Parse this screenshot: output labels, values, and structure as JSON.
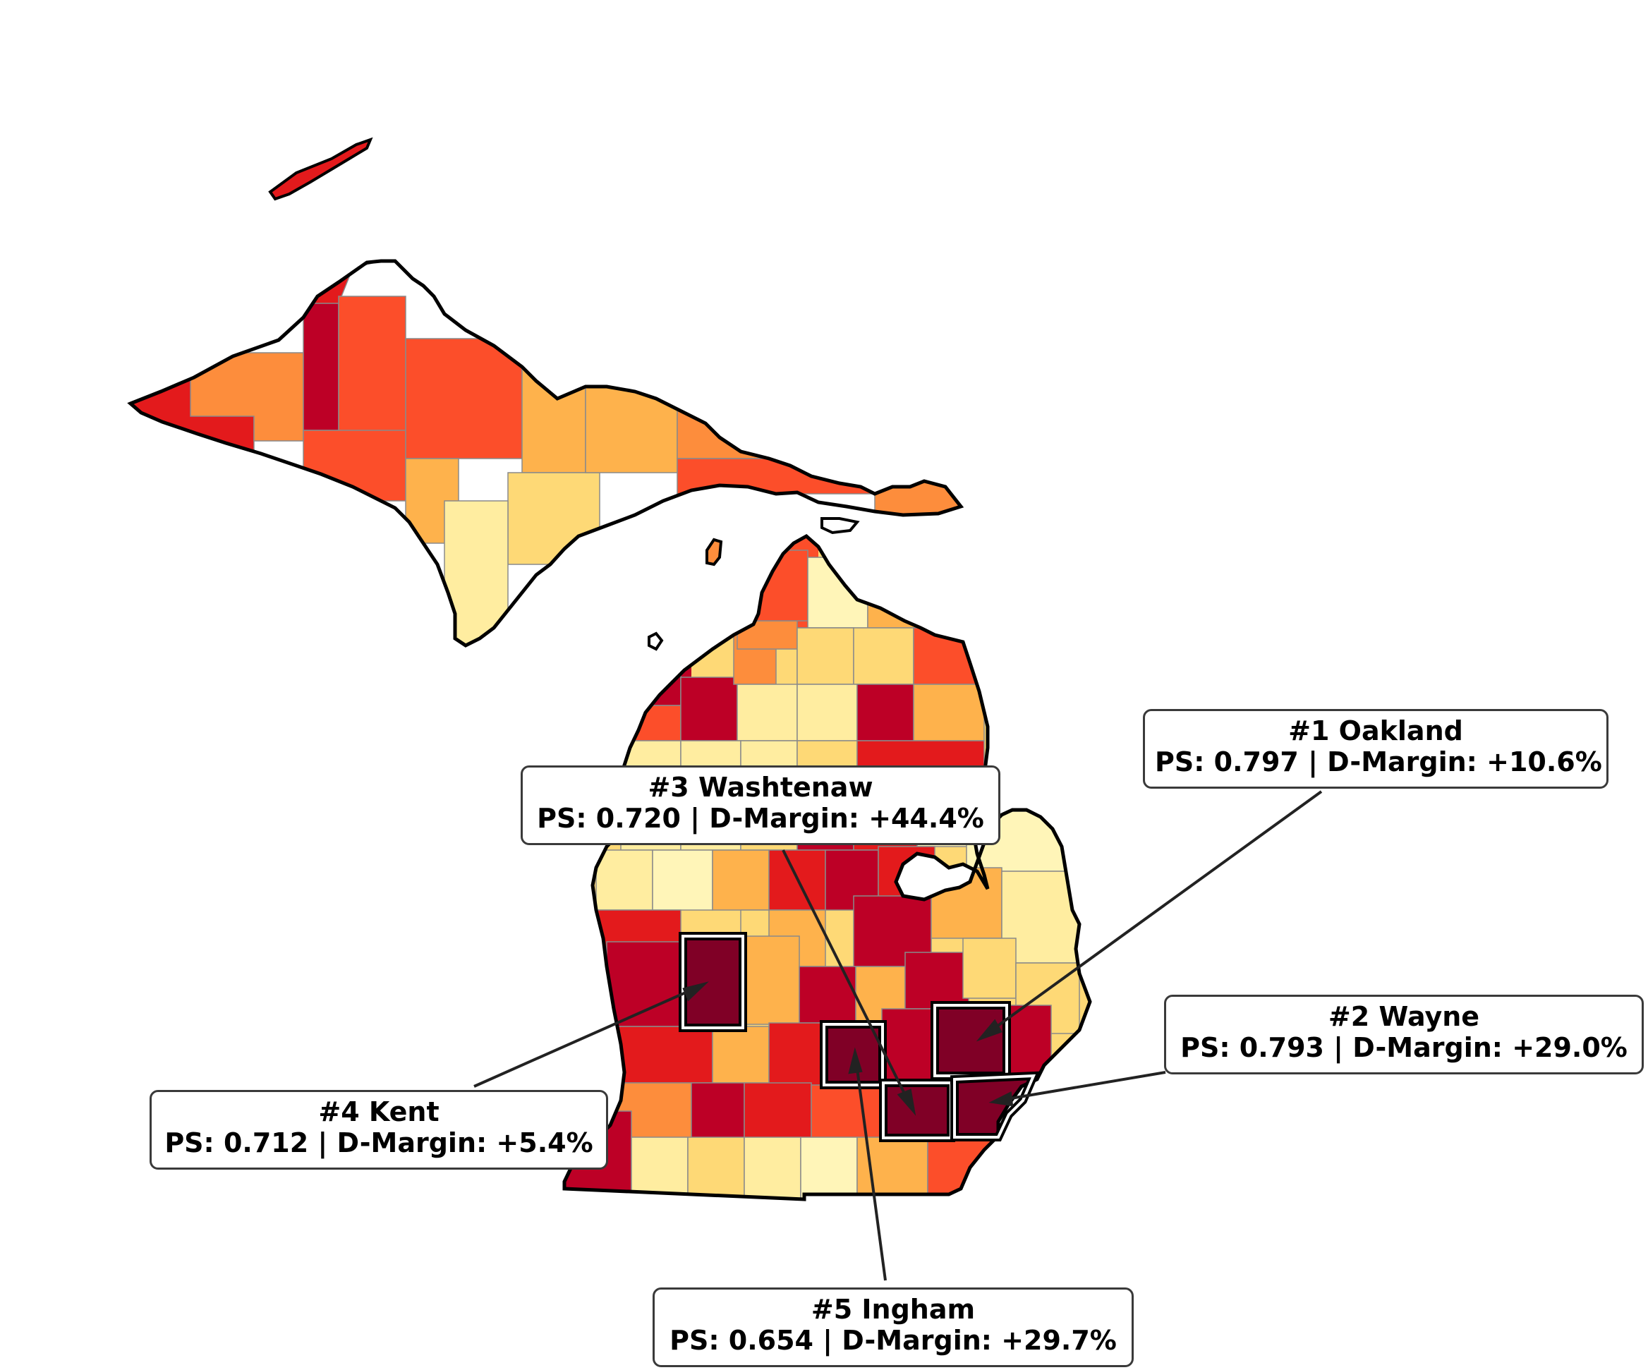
{
  "colors": {
    "scale": [
      "#fff5b8",
      "#ffeda0",
      "#fed976",
      "#feb24c",
      "#fd8d3c",
      "#fc4e2a",
      "#e31a1c",
      "#bd0026",
      "#800026"
    ],
    "border": "#000000",
    "county_border": "#8a8a8a",
    "highlight_border": "#ffffff"
  },
  "map": {
    "upper": [
      {
        "name": "isle-royale",
        "level": 6
      },
      {
        "name": "gogebic",
        "level": 6
      },
      {
        "name": "ontonagon",
        "level": 4
      },
      {
        "name": "houghton",
        "level": 7
      },
      {
        "name": "keweenaw",
        "level": 6
      },
      {
        "name": "baraga",
        "level": 5
      },
      {
        "name": "marquette",
        "level": 5
      },
      {
        "name": "iron",
        "level": 5
      },
      {
        "name": "dickinson",
        "level": 3
      },
      {
        "name": "alger",
        "level": 3
      },
      {
        "name": "schoolcraft",
        "level": 3
      },
      {
        "name": "menominee",
        "level": 1
      },
      {
        "name": "delta",
        "level": 2
      },
      {
        "name": "luce",
        "level": 4
      },
      {
        "name": "chippewa-w",
        "level": 4
      },
      {
        "name": "mackinac",
        "level": 5
      },
      {
        "name": "chippewa-e",
        "level": 4
      },
      {
        "name": "beaver-island",
        "level": 4
      }
    ],
    "lower": [
      {
        "name": "leelanau",
        "level": 7
      },
      {
        "name": "benzie",
        "level": 5
      },
      {
        "name": "grand-traverse",
        "level": 7
      },
      {
        "name": "antrim",
        "level": 4
      },
      {
        "name": "charlevoix",
        "level": 4
      },
      {
        "name": "emmet",
        "level": 5
      },
      {
        "name": "cheboygan",
        "level": 0
      },
      {
        "name": "presque-isle",
        "level": 3
      },
      {
        "name": "kalkaska",
        "level": 2
      },
      {
        "name": "otsego",
        "level": 2
      },
      {
        "name": "montmorency",
        "level": 2
      },
      {
        "name": "alpena",
        "level": 5
      },
      {
        "name": "wexford",
        "level": 1
      },
      {
        "name": "missaukee",
        "level": 1
      },
      {
        "name": "roscommon",
        "level": 7
      },
      {
        "name": "alcona",
        "level": 3
      },
      {
        "name": "mason",
        "level": 1
      },
      {
        "name": "lake",
        "level": 1
      },
      {
        "name": "osceola",
        "level": 1
      },
      {
        "name": "clare",
        "level": 2
      },
      {
        "name": "iosco",
        "level": 6
      },
      {
        "name": "oceana",
        "level": 1
      },
      {
        "name": "newaygo",
        "level": 0
      },
      {
        "name": "mecosta",
        "level": 3
      },
      {
        "name": "isabella",
        "level": 6
      },
      {
        "name": "midland",
        "level": 7
      },
      {
        "name": "bay",
        "level": 6
      },
      {
        "name": "huron",
        "level": 0
      },
      {
        "name": "muskegon",
        "level": 6
      },
      {
        "name": "montcalm",
        "level": 2
      },
      {
        "name": "gratiot",
        "level": 3
      },
      {
        "name": "saginaw",
        "level": 7
      },
      {
        "name": "tuscola",
        "level": 3
      },
      {
        "name": "sanilac",
        "level": 1
      },
      {
        "name": "ottawa",
        "level": 7
      },
      {
        "name": "kent",
        "level": 8
      },
      {
        "name": "ionia",
        "level": 3
      },
      {
        "name": "clinton",
        "level": 7
      },
      {
        "name": "shiawassee",
        "level": 3
      },
      {
        "name": "genesee",
        "level": 7
      },
      {
        "name": "lapeer",
        "level": 2
      },
      {
        "name": "st-clair",
        "level": 2
      },
      {
        "name": "allegan",
        "level": 6
      },
      {
        "name": "barry",
        "level": 3
      },
      {
        "name": "eaton",
        "level": 6
      },
      {
        "name": "ingham",
        "level": 8
      },
      {
        "name": "livingston",
        "level": 7
      },
      {
        "name": "oakland",
        "level": 8
      },
      {
        "name": "macomb",
        "level": 7
      },
      {
        "name": "van-buren",
        "level": 4
      },
      {
        "name": "kalamazoo",
        "level": 7
      },
      {
        "name": "calhoun",
        "level": 6
      },
      {
        "name": "jackson",
        "level": 5
      },
      {
        "name": "washtenaw",
        "level": 8
      },
      {
        "name": "wayne",
        "level": 8
      },
      {
        "name": "berrien",
        "level": 7
      },
      {
        "name": "cass",
        "level": 1
      },
      {
        "name": "st-joseph",
        "level": 2
      },
      {
        "name": "branch",
        "level": 1
      },
      {
        "name": "hillsdale",
        "level": 0
      },
      {
        "name": "lenawee",
        "level": 3
      },
      {
        "name": "monroe",
        "level": 5
      }
    ]
  },
  "callouts": [
    {
      "rank": "#1 Oakland",
      "stats": "PS: 0.797 | D-Margin: +10.6%"
    },
    {
      "rank": "#2 Wayne",
      "stats": "PS: 0.793 | D-Margin: +29.0%"
    },
    {
      "rank": "#3 Washtenaw",
      "stats": "PS: 0.720 | D-Margin: +44.4%"
    },
    {
      "rank": "#4 Kent",
      "stats": "PS: 0.712 | D-Margin: +5.4%"
    },
    {
      "rank": "#5 Ingham",
      "stats": "PS: 0.654 | D-Margin: +29.7%"
    }
  ]
}
